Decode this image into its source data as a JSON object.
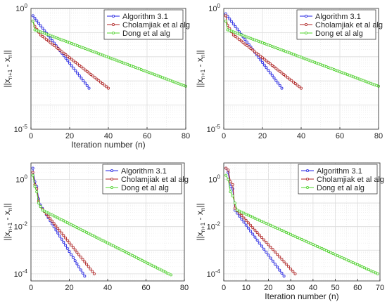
{
  "colors": {
    "series": [
      "#2323e6",
      "#b22222",
      "#4dd52a"
    ],
    "marker_face": "#f0f0f0"
  },
  "chart_data": [
    {
      "type": "line",
      "yscale": "log",
      "xlabel": "Iteration number (n)",
      "ylabel": "||x_{n+1} - x_n||",
      "xlim": [
        0,
        80
      ],
      "ylim": [
        1e-05,
        1
      ],
      "xticks": [
        "0",
        "20",
        "40",
        "60",
        "80"
      ],
      "yticks": [
        {
          "base": "10",
          "exp": "0",
          "v": 1
        },
        {
          "base": "10",
          "exp": "-5",
          "v": 1e-05
        }
      ],
      "legend": "top-right",
      "grid": true,
      "series": [
        {
          "name": "Algorithm 3.1",
          "x_start": 1,
          "x_end": 30,
          "keypoints": [
            [
              1,
              0.5
            ],
            [
              30,
              0.0005
            ]
          ]
        },
        {
          "name": "Cholamjiak et al alg",
          "x_start": 1,
          "x_end": 40,
          "keypoints": [
            [
              1,
              0.3
            ],
            [
              2,
              0.18
            ],
            [
              5,
              0.08
            ],
            [
              40,
              0.0005
            ]
          ]
        },
        {
          "name": "Dong et al alg",
          "x_start": 1,
          "x_end": 80,
          "keypoints": [
            [
              1,
              0.3
            ],
            [
              2,
              0.13
            ],
            [
              6,
              0.1
            ],
            [
              80,
              0.0006
            ]
          ]
        }
      ]
    },
    {
      "type": "line",
      "yscale": "log",
      "xlabel": "",
      "ylabel": "||x_{n+1} - x_n||",
      "xlim": [
        0,
        80
      ],
      "ylim": [
        1e-05,
        1
      ],
      "xticks": [
        "0",
        "20",
        "40",
        "60",
        "80"
      ],
      "yticks": [
        {
          "base": "10",
          "exp": "0",
          "v": 1
        },
        {
          "base": "10",
          "exp": "-5",
          "v": 1e-05
        }
      ],
      "legend": "top-right",
      "grid": true,
      "series": [
        {
          "name": "Algorithm 3.1",
          "x_start": 1,
          "x_end": 30,
          "keypoints": [
            [
              1,
              0.6
            ],
            [
              30,
              0.0005
            ]
          ]
        },
        {
          "name": "Cholamjiak et al alg",
          "x_start": 1,
          "x_end": 40,
          "keypoints": [
            [
              1,
              0.5
            ],
            [
              2,
              0.2
            ],
            [
              5,
              0.08
            ],
            [
              40,
              0.0005
            ]
          ]
        },
        {
          "name": "Dong et al alg",
          "x_start": 1,
          "x_end": 80,
          "keypoints": [
            [
              1,
              0.3
            ],
            [
              2,
              0.13
            ],
            [
              6,
              0.1
            ],
            [
              80,
              0.0006
            ]
          ]
        }
      ]
    },
    {
      "type": "line",
      "yscale": "log",
      "xlabel": "",
      "ylabel": "||x_{n+1} - x_n||",
      "xlim": [
        0,
        80
      ],
      "ylim": [
        5e-05,
        5
      ],
      "xticks": [
        "0",
        "20",
        "40",
        "60",
        "80"
      ],
      "yticks": [
        {
          "base": "10",
          "exp": "0",
          "v": 1
        },
        {
          "base": "10",
          "exp": "-2",
          "v": 0.01
        },
        {
          "base": "10",
          "exp": "-4",
          "v": 0.0001
        }
      ],
      "legend": "top-right",
      "grid": true,
      "series": [
        {
          "name": "Algorithm 3.1",
          "x_start": 1,
          "x_end": 28,
          "keypoints": [
            [
              1,
              3.0
            ],
            [
              2,
              0.8
            ],
            [
              3,
              0.5
            ],
            [
              4,
              0.15
            ],
            [
              5,
              0.08
            ],
            [
              28,
              8e-05
            ]
          ]
        },
        {
          "name": "Cholamjiak et al alg",
          "x_start": 1,
          "x_end": 33,
          "keypoints": [
            [
              1,
              2.0
            ],
            [
              2,
              0.6
            ],
            [
              3,
              0.4
            ],
            [
              4,
              0.12
            ],
            [
              5,
              0.07
            ],
            [
              33,
              0.0001
            ]
          ]
        },
        {
          "name": "Dong et al alg",
          "x_start": 1,
          "x_end": 73,
          "keypoints": [
            [
              1,
              1.5
            ],
            [
              2,
              0.5
            ],
            [
              3,
              0.3
            ],
            [
              4,
              0.1
            ],
            [
              6,
              0.05
            ],
            [
              73,
              9e-05
            ]
          ]
        }
      ]
    },
    {
      "type": "line",
      "yscale": "log",
      "xlabel": "Iteration number (n)",
      "ylabel": "||x_{n+1} - x_n||",
      "xlim": [
        0,
        70
      ],
      "ylim": [
        5e-05,
        5
      ],
      "xticks": [
        "0",
        "10",
        "20",
        "30",
        "40",
        "50",
        "60",
        "70"
      ],
      "yticks": [
        {
          "base": "10",
          "exp": "0",
          "v": 1
        },
        {
          "base": "10",
          "exp": "-2",
          "v": 0.01
        },
        {
          "base": "10",
          "exp": "-4",
          "v": 0.0001
        }
      ],
      "legend": "top-right",
      "grid": true,
      "series": [
        {
          "name": "Algorithm 3.1",
          "x_start": 1,
          "x_end": 27,
          "keypoints": [
            [
              1,
              3.0
            ],
            [
              2,
              2.0
            ],
            [
              3,
              0.5
            ],
            [
              4,
              0.4
            ],
            [
              5,
              0.05
            ],
            [
              27,
              8e-05
            ]
          ]
        },
        {
          "name": "Cholamjiak et al alg",
          "x_start": 1,
          "x_end": 32,
          "keypoints": [
            [
              1,
              3.0
            ],
            [
              2,
              2.5
            ],
            [
              3,
              0.8
            ],
            [
              4,
              0.6
            ],
            [
              5,
              0.06
            ],
            [
              32,
              0.0001
            ]
          ]
        },
        {
          "name": "Dong et al alg",
          "x_start": 1,
          "x_end": 69,
          "keypoints": [
            [
              1,
              1.5
            ],
            [
              2,
              1.0
            ],
            [
              3,
              0.3
            ],
            [
              4,
              0.2
            ],
            [
              6,
              0.05
            ],
            [
              69,
              0.0001
            ]
          ]
        }
      ]
    }
  ]
}
